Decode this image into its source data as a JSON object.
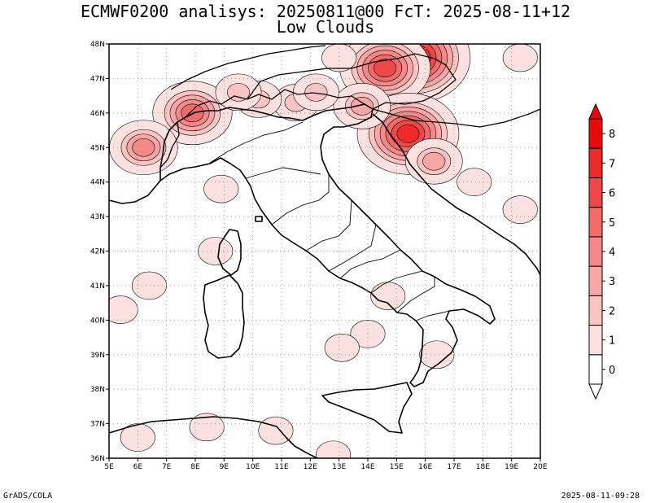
{
  "title_line1": "ECMWF0200 analisys: 20250811@00 FcT: 2025-08-11+12",
  "title_line2": "Low Clouds",
  "footer_left": "GrADS/COLA",
  "footer_right": "2025-08-11-09:28",
  "map": {
    "lon_range": [
      5,
      20
    ],
    "lat_range": [
      36,
      48
    ],
    "lon_labels": [
      "5E",
      "6E",
      "7E",
      "8E",
      "9E",
      "10E",
      "11E",
      "12E",
      "13E",
      "14E",
      "15E",
      "16E",
      "17E",
      "18E",
      "19E",
      "20E"
    ],
    "lat_labels": [
      "36N",
      "37N",
      "38N",
      "39N",
      "40N",
      "41N",
      "42N",
      "43N",
      "44N",
      "45N",
      "46N",
      "47N",
      "48N"
    ],
    "grid": "dotted"
  },
  "colorbar": {
    "levels": [
      "0",
      "1",
      "2",
      "3",
      "4",
      "5",
      "6",
      "7",
      "8"
    ],
    "colors": [
      "#ffffff",
      "#fde0e0",
      "#fbc4c4",
      "#f8a6a6",
      "#f58888",
      "#f26a6a",
      "#f04848",
      "#ee2a2a",
      "#e80a0a"
    ]
  },
  "chart_data": {
    "type": "heatmap",
    "title": "ECMWF0200 analisys: 20250811@00 FcT: 2025-08-11+12",
    "subtitle": "Low Clouds",
    "xlim": [
      5,
      20
    ],
    "ylim": [
      36,
      48
    ],
    "levels": [
      0,
      1,
      2,
      3,
      4,
      5,
      6,
      7,
      8
    ],
    "cloud_cells": [
      {
        "lon": 15.6,
        "lat": 47.6,
        "value": 8
      },
      {
        "lon": 14.6,
        "lat": 47.3,
        "value": 6
      },
      {
        "lon": 15.4,
        "lat": 45.4,
        "value": 7
      },
      {
        "lon": 7.9,
        "lat": 46.0,
        "value": 5
      },
      {
        "lon": 6.2,
        "lat": 45.0,
        "value": 4
      },
      {
        "lon": 16.3,
        "lat": 44.6,
        "value": 3
      },
      {
        "lon": 13.8,
        "lat": 46.2,
        "value": 3
      },
      {
        "lon": 11.5,
        "lat": 46.3,
        "value": 2
      },
      {
        "lon": 10.2,
        "lat": 46.4,
        "value": 2
      },
      {
        "lon": 9.5,
        "lat": 46.6,
        "value": 2
      },
      {
        "lon": 12.2,
        "lat": 46.6,
        "value": 2
      },
      {
        "lon": 13.0,
        "lat": 47.6,
        "value": 1
      },
      {
        "lon": 19.3,
        "lat": 47.6,
        "value": 1
      },
      {
        "lon": 19.3,
        "lat": 43.2,
        "value": 1
      },
      {
        "lon": 17.7,
        "lat": 44.0,
        "value": 1
      },
      {
        "lon": 8.7,
        "lat": 42.0,
        "value": 1
      },
      {
        "lon": 8.9,
        "lat": 43.8,
        "value": 1
      },
      {
        "lon": 5.4,
        "lat": 40.3,
        "value": 1
      },
      {
        "lon": 6.4,
        "lat": 41.0,
        "value": 1
      },
      {
        "lon": 14.0,
        "lat": 39.6,
        "value": 1
      },
      {
        "lon": 16.4,
        "lat": 39.0,
        "value": 1
      },
      {
        "lon": 13.1,
        "lat": 39.2,
        "value": 1
      },
      {
        "lon": 8.4,
        "lat": 36.9,
        "value": 1
      },
      {
        "lon": 6.0,
        "lat": 36.6,
        "value": 1
      },
      {
        "lon": 10.8,
        "lat": 36.8,
        "value": 1
      },
      {
        "lon": 12.8,
        "lat": 36.1,
        "value": 1
      },
      {
        "lon": 14.7,
        "lat": 40.7,
        "value": 1
      }
    ]
  }
}
